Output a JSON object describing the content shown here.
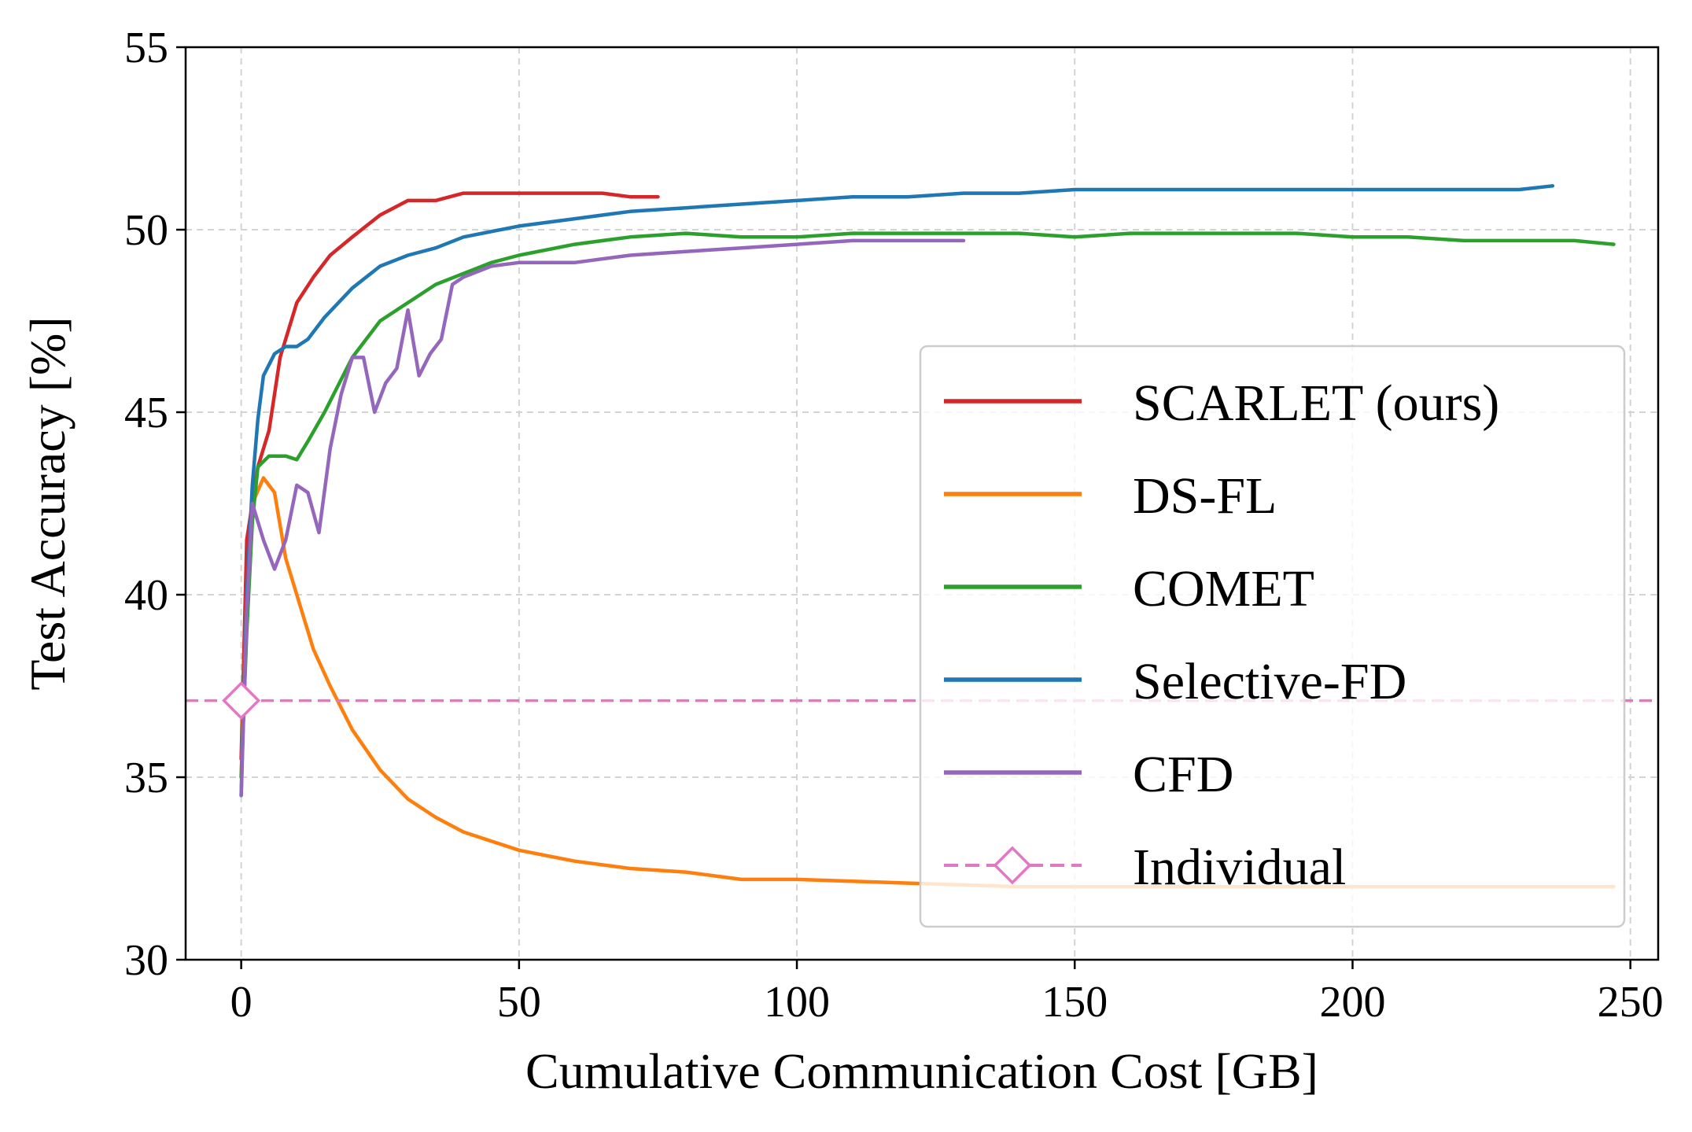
{
  "chart_data": {
    "type": "line",
    "title": "",
    "xlabel": "Cumulative Communication Cost [GB]",
    "ylabel": "Test Accuracy [%]",
    "xlim": [
      -10,
      255
    ],
    "ylim": [
      30,
      55
    ],
    "xticks": [
      0,
      50,
      100,
      150,
      200,
      250
    ],
    "yticks": [
      30,
      35,
      40,
      45,
      50,
      55
    ],
    "grid": true,
    "legend_position": "center-right",
    "series": [
      {
        "name": "SCARLET (ours)",
        "color": "#d62728",
        "style": "solid",
        "x": [
          0,
          1,
          2,
          3,
          5,
          7,
          10,
          13,
          16,
          20,
          25,
          30,
          35,
          40,
          45,
          50,
          55,
          60,
          65,
          70,
          75
        ],
        "y": [
          35.5,
          41.5,
          42.5,
          43.5,
          44.5,
          46.5,
          48.0,
          48.7,
          49.3,
          49.8,
          50.4,
          50.8,
          50.8,
          51.0,
          51.0,
          51.0,
          51.0,
          51.0,
          51.0,
          50.9,
          50.9
        ]
      },
      {
        "name": "DS-FL",
        "color": "#ff7f0e",
        "style": "solid",
        "x": [
          0,
          1,
          2,
          4,
          6,
          8,
          10,
          13,
          16,
          20,
          25,
          30,
          35,
          40,
          50,
          60,
          70,
          80,
          90,
          100,
          120,
          140,
          160,
          180,
          200,
          220,
          240,
          247
        ],
        "y": [
          35.0,
          40.0,
          42.5,
          43.2,
          42.8,
          41.0,
          40.0,
          38.5,
          37.5,
          36.3,
          35.2,
          34.4,
          33.9,
          33.5,
          33.0,
          32.7,
          32.5,
          32.4,
          32.2,
          32.2,
          32.1,
          32.0,
          32.0,
          32.0,
          32.0,
          32.0,
          32.0,
          32.0
        ]
      },
      {
        "name": "COMET",
        "color": "#2ca02c",
        "style": "solid",
        "x": [
          0,
          1,
          2,
          3,
          5,
          8,
          10,
          12,
          15,
          20,
          25,
          30,
          35,
          40,
          45,
          50,
          60,
          70,
          80,
          90,
          100,
          110,
          120,
          130,
          140,
          150,
          160,
          170,
          180,
          190,
          200,
          210,
          220,
          230,
          240,
          247
        ],
        "y": [
          35.0,
          39.0,
          42.0,
          43.5,
          43.8,
          43.8,
          43.7,
          44.2,
          45.0,
          46.5,
          47.5,
          48.0,
          48.5,
          48.8,
          49.1,
          49.3,
          49.6,
          49.8,
          49.9,
          49.8,
          49.8,
          49.9,
          49.9,
          49.9,
          49.9,
          49.8,
          49.9,
          49.9,
          49.9,
          49.9,
          49.8,
          49.8,
          49.7,
          49.7,
          49.7,
          49.6
        ]
      },
      {
        "name": "Selective-FD",
        "color": "#1f77b4",
        "style": "solid",
        "x": [
          0,
          1,
          2,
          3,
          4,
          6,
          8,
          10,
          12,
          15,
          20,
          25,
          30,
          35,
          40,
          50,
          60,
          70,
          80,
          90,
          100,
          110,
          120,
          130,
          140,
          150,
          160,
          170,
          180,
          190,
          200,
          210,
          220,
          230,
          236
        ],
        "y": [
          34.5,
          40.0,
          43.0,
          44.8,
          46.0,
          46.6,
          46.8,
          46.8,
          47.0,
          47.6,
          48.4,
          49.0,
          49.3,
          49.5,
          49.8,
          50.1,
          50.3,
          50.5,
          50.6,
          50.7,
          50.8,
          50.9,
          50.9,
          51.0,
          51.0,
          51.1,
          51.1,
          51.1,
          51.1,
          51.1,
          51.1,
          51.1,
          51.1,
          51.1,
          51.2
        ]
      },
      {
        "name": "CFD",
        "color": "#9467bd",
        "style": "solid",
        "x": [
          0,
          1,
          2,
          3,
          4,
          6,
          8,
          10,
          12,
          14,
          16,
          18,
          20,
          22,
          24,
          26,
          28,
          30,
          32,
          34,
          36,
          38,
          40,
          45,
          50,
          60,
          70,
          80,
          90,
          100,
          110,
          120,
          130
        ],
        "y": [
          34.5,
          39.5,
          42.5,
          42.0,
          41.5,
          40.7,
          41.5,
          43.0,
          42.8,
          41.7,
          44.0,
          45.5,
          46.5,
          46.5,
          45.0,
          45.8,
          46.2,
          47.8,
          46.0,
          46.6,
          47.0,
          48.5,
          48.7,
          49.0,
          49.1,
          49.1,
          49.3,
          49.4,
          49.5,
          49.6,
          49.7,
          49.7,
          49.7
        ]
      },
      {
        "name": "Individual",
        "color": "#e377c2",
        "style": "dashed",
        "marker": "diamond",
        "x": [
          -10,
          0,
          255
        ],
        "y": [
          37.1,
          37.1,
          37.1
        ]
      }
    ]
  }
}
